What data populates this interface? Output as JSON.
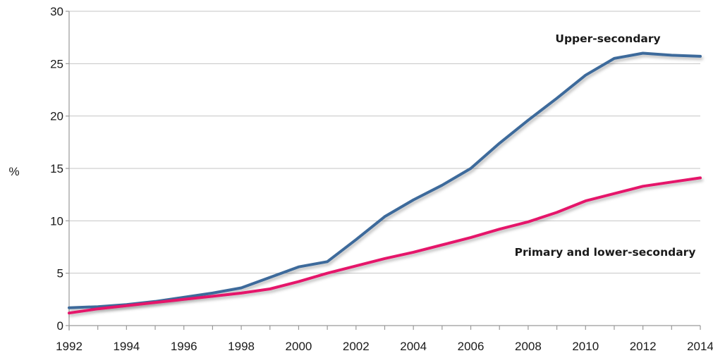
{
  "chart_data": {
    "type": "line",
    "title": "",
    "xlabel": "",
    "ylabel": "%",
    "x": [
      1992,
      1993,
      1994,
      1995,
      1996,
      1997,
      1998,
      1999,
      2000,
      2001,
      2002,
      2003,
      2004,
      2005,
      2006,
      2007,
      2008,
      2009,
      2010,
      2011,
      2012,
      2013,
      2014
    ],
    "x_ticks": [
      "1992",
      "1994",
      "1996",
      "1998",
      "2000",
      "2002",
      "2004",
      "2006",
      "2008",
      "2010",
      "2012",
      "2014"
    ],
    "y_ticks": [
      "0",
      "5",
      "10",
      "15",
      "20",
      "25",
      "30"
    ],
    "xlim": [
      1992,
      2014
    ],
    "ylim": [
      0,
      30
    ],
    "grid": true,
    "series": [
      {
        "name": "Upper-secondary",
        "color": "#3d6a9b",
        "values": [
          1.7,
          1.8,
          2.0,
          2.3,
          2.7,
          3.1,
          3.6,
          4.6,
          5.6,
          6.1,
          8.2,
          10.4,
          12.0,
          13.4,
          15.0,
          17.4,
          19.6,
          21.7,
          23.9,
          25.5,
          26.0,
          25.8,
          25.7
        ]
      },
      {
        "name": "Primary and lower-secondary",
        "color": "#e5126a",
        "values": [
          1.2,
          1.6,
          1.9,
          2.2,
          2.5,
          2.8,
          3.1,
          3.5,
          4.2,
          5.0,
          5.7,
          6.4,
          7.0,
          7.7,
          8.4,
          9.2,
          9.9,
          10.8,
          11.9,
          12.6,
          13.3,
          13.7,
          14.1
        ]
      }
    ]
  }
}
